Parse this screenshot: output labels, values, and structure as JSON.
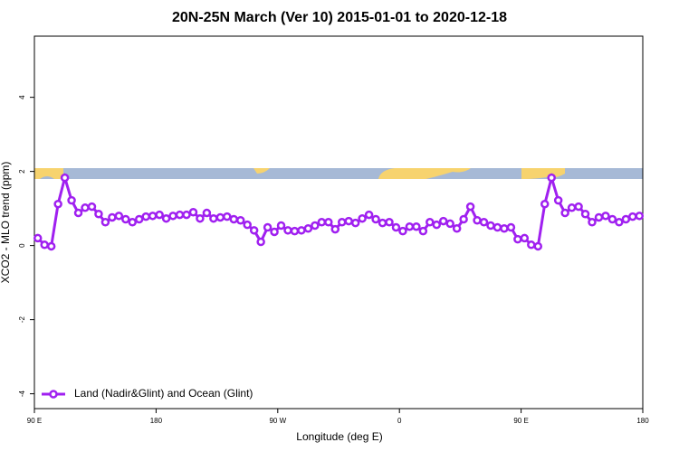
{
  "chart_data": {
    "type": "line",
    "title": "20N-25N March (Ver 10)   2015-01-01 to 2020-12-18",
    "x_label": "Longitude (deg E)",
    "y_label": "XCO2 - MLO trend (ppm)",
    "xlim": [
      90,
      540
    ],
    "ylim": [
      -4.4,
      5.65
    ],
    "xticks": [
      {
        "value": 90,
        "label": "90 E"
      },
      180,
      {
        "value": 270,
        "label": "90 W"
      },
      {
        "value": 360,
        "label": "0"
      },
      {
        "value": 450,
        "label": "90 E"
      },
      {
        "value": 540,
        "label": "180"
      }
    ],
    "yticks": [
      4,
      2,
      0,
      -2,
      -4
    ],
    "legend": "bottom-left",
    "x": [
      92.5,
      97.5,
      102.5,
      107.5,
      112.5,
      117.5,
      122.5,
      127.5,
      132.5,
      137.5,
      142.5,
      147.5,
      152.5,
      157.5,
      162.5,
      167.5,
      172.5,
      177.5,
      182.5,
      187.5,
      192.5,
      197.5,
      202.5,
      207.5,
      212.5,
      217.5,
      222.5,
      227.5,
      232.5,
      237.5,
      242.5,
      247.5,
      252.5,
      257.5,
      262.5,
      267.5,
      272.5,
      277.5,
      282.5,
      287.5,
      292.5,
      297.5,
      302.5,
      307.5,
      312.5,
      317.5,
      322.5,
      327.5,
      332.5,
      337.5,
      342.5,
      347.5,
      352.5,
      357.5,
      362.5,
      367.5,
      372.5,
      377.5,
      382.5,
      387.5,
      392.5,
      397.5,
      402.5,
      407.5,
      412.5,
      417.5,
      422.5,
      427.5,
      432.5,
      437.5,
      442.5,
      447.5,
      452.5,
      457.5,
      462.5,
      467.5,
      472.5,
      477.5,
      482.5,
      487.5,
      492.5,
      497.5,
      502.5,
      507.5,
      512.5,
      517.5,
      522.5,
      527.5,
      532.5,
      537.5
    ],
    "series": [
      {
        "name": "Land (Nadir&Glint) and Ocean (Glint)",
        "color": "#a020f0",
        "values": [
          0.2,
          0.02,
          -0.02,
          1.12,
          1.83,
          1.22,
          0.88,
          1.02,
          1.05,
          0.85,
          0.63,
          0.76,
          0.8,
          0.71,
          0.63,
          0.71,
          0.78,
          0.8,
          0.83,
          0.73,
          0.8,
          0.83,
          0.83,
          0.9,
          0.73,
          0.88,
          0.73,
          0.76,
          0.78,
          0.71,
          0.68,
          0.56,
          0.41,
          0.1,
          0.49,
          0.37,
          0.54,
          0.41,
          0.39,
          0.41,
          0.46,
          0.54,
          0.63,
          0.63,
          0.44,
          0.63,
          0.66,
          0.61,
          0.73,
          0.83,
          0.71,
          0.61,
          0.63,
          0.49,
          0.39,
          0.51,
          0.51,
          0.39,
          0.63,
          0.56,
          0.66,
          0.59,
          0.46,
          0.71,
          1.05,
          0.68,
          0.63,
          0.54,
          0.49,
          0.46,
          0.49,
          0.17,
          0.2,
          0.02,
          -0.02,
          1.12,
          1.83,
          1.22,
          0.88,
          1.02,
          1.05,
          0.85,
          0.63,
          0.76,
          0.8,
          0.71,
          0.63,
          0.71,
          0.78,
          0.8
        ]
      }
    ]
  }
}
